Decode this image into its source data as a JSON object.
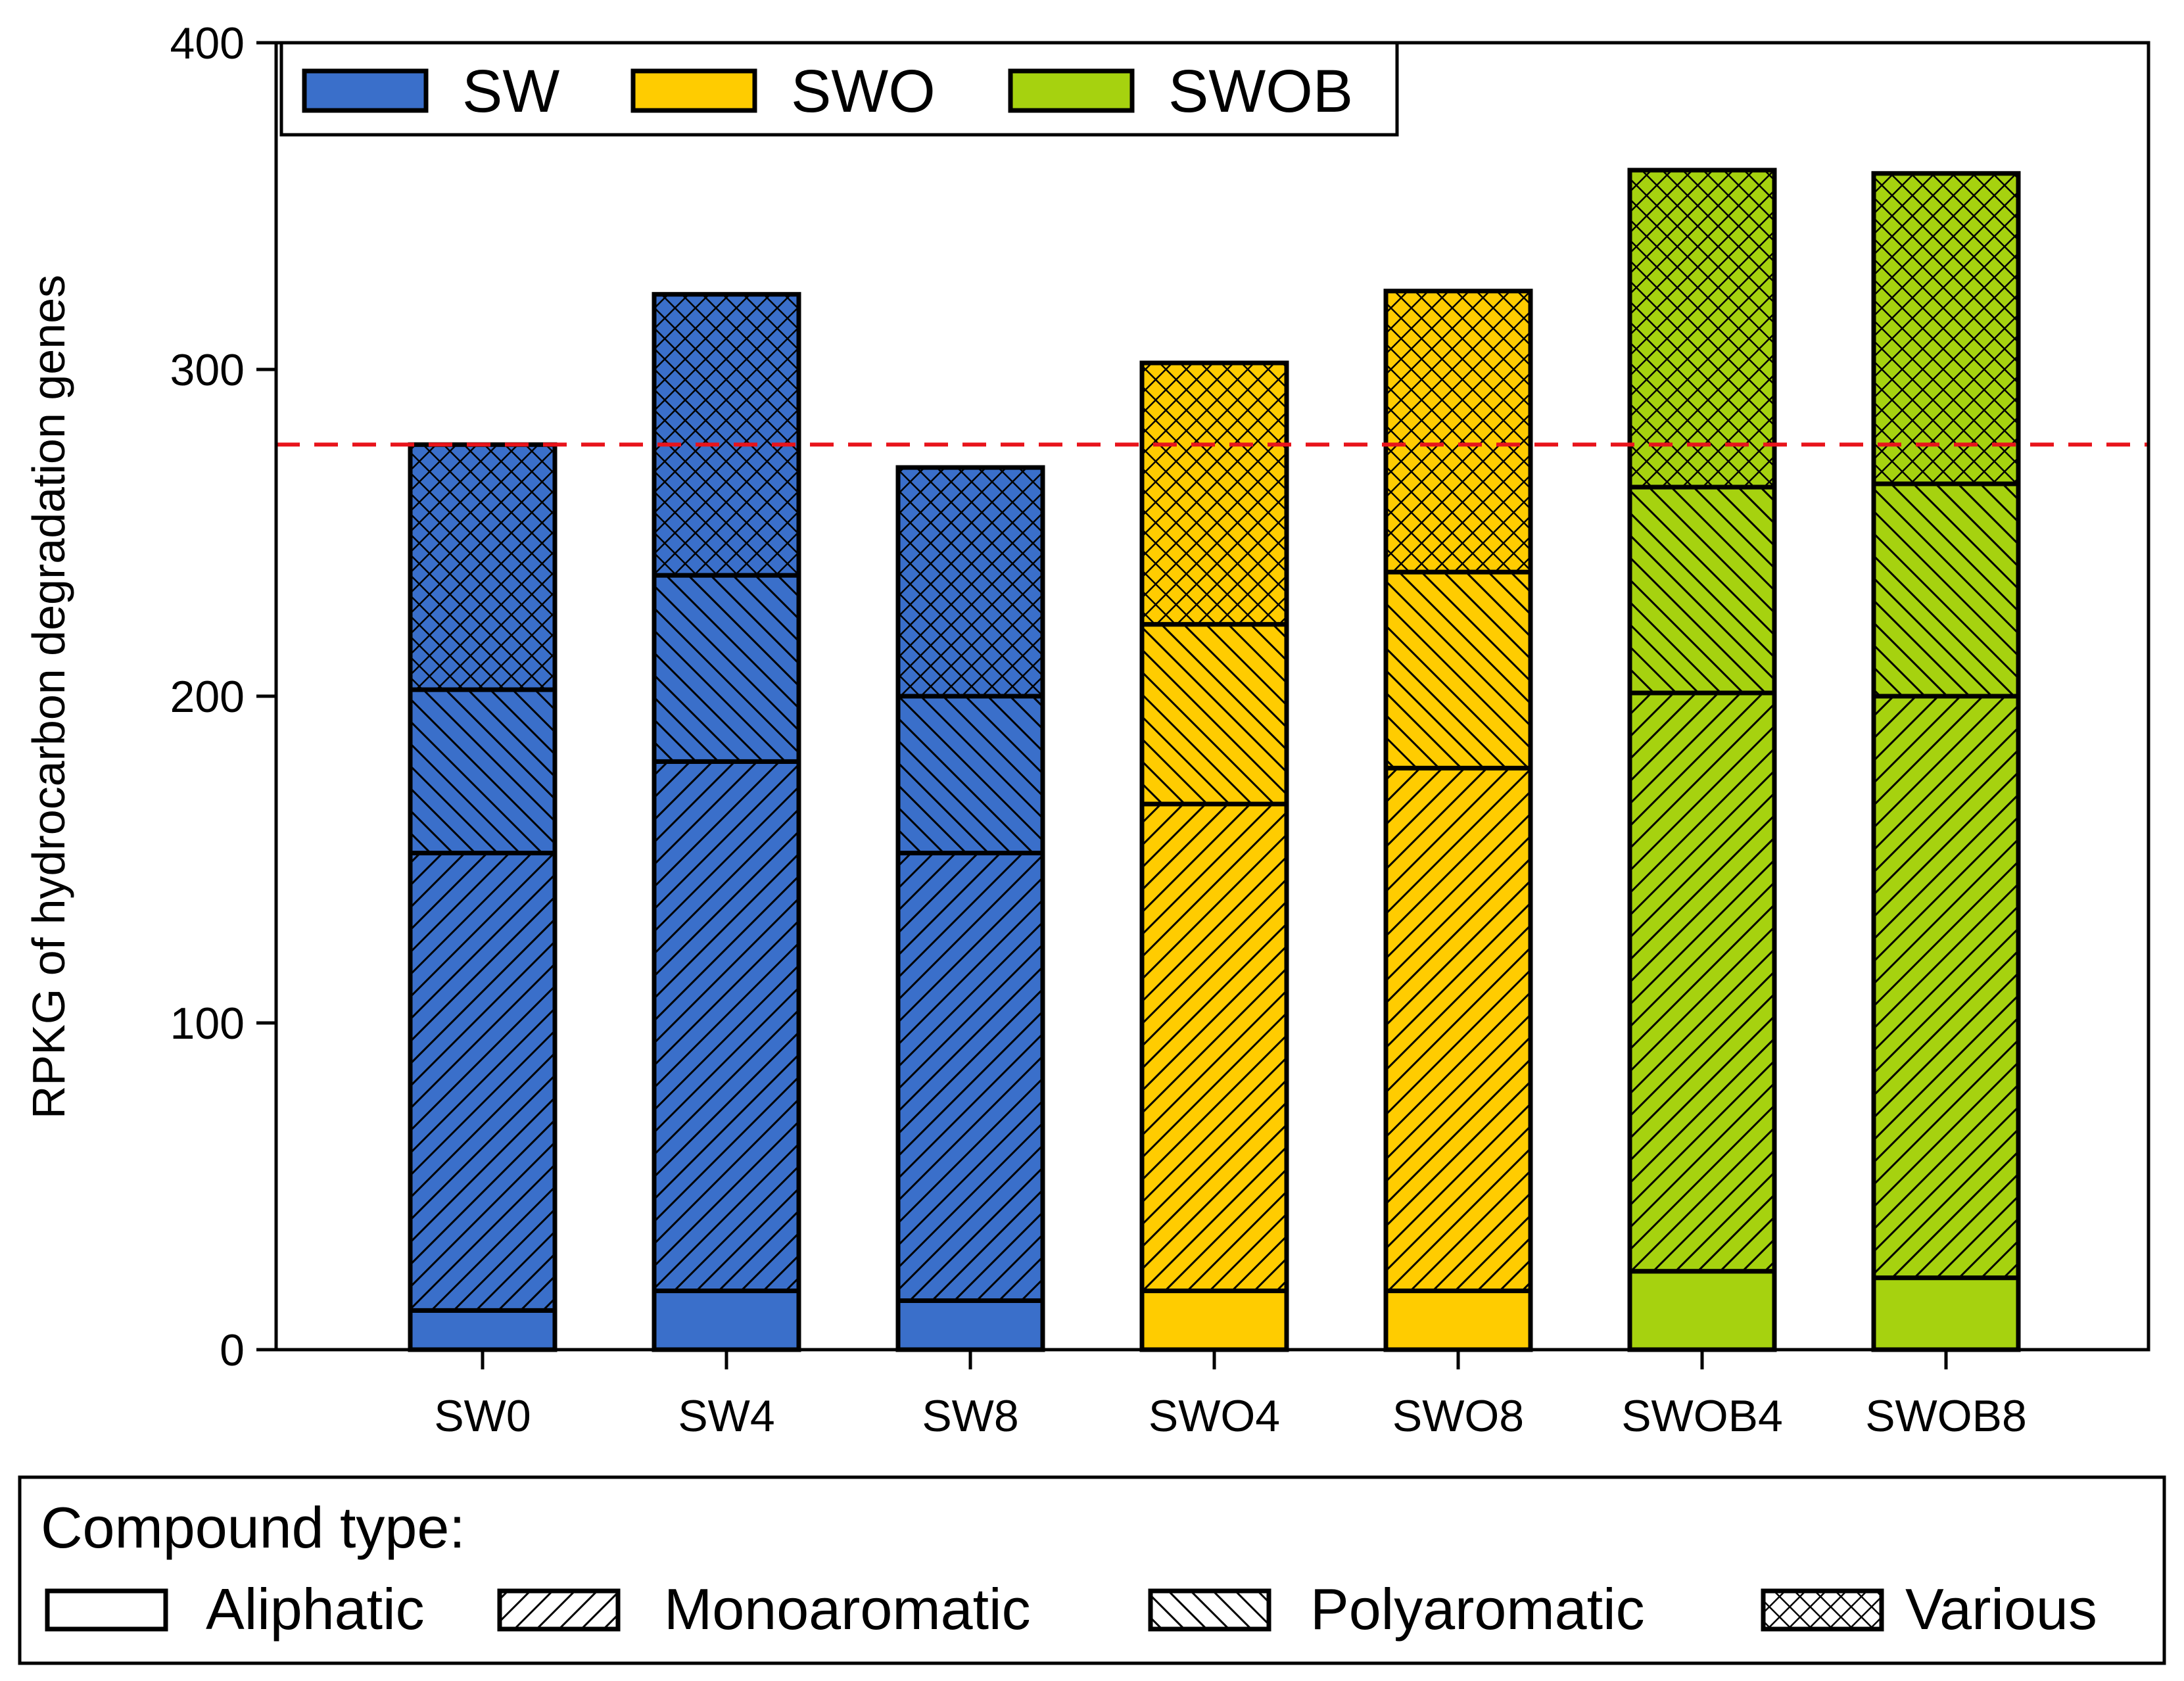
{
  "chart_data": {
    "type": "bar",
    "stacked": true,
    "title": "",
    "xlabel": "",
    "ylabel": "RPKG of hydrocarbon degradation genes",
    "ylim": [
      0,
      400
    ],
    "yticks": [
      0,
      100,
      200,
      300,
      400
    ],
    "grid": false,
    "categories": [
      "SW0",
      "SW4",
      "SW8",
      "SWO4",
      "SWO8",
      "SWOB4",
      "SWOB8"
    ],
    "category_groups": [
      "SW",
      "SW",
      "SW",
      "SWO",
      "SWO",
      "SWOB",
      "SWOB"
    ],
    "groups": [
      {
        "name": "SW",
        "color": "#3a6fca"
      },
      {
        "name": "SWO",
        "color": "#ffcc00"
      },
      {
        "name": "SWOB",
        "color": "#a6d20f"
      }
    ],
    "series": [
      {
        "name": "Aliphatic",
        "pattern": "none",
        "values": [
          12,
          18,
          15,
          18,
          18,
          24,
          22
        ]
      },
      {
        "name": "Monoaromatic",
        "pattern": "diagonal-up",
        "values": [
          140,
          162,
          137,
          149,
          160,
          177,
          178
        ]
      },
      {
        "name": "Polyaromatic",
        "pattern": "diagonal-down",
        "values": [
          50,
          57,
          48,
          55,
          60,
          63,
          65
        ]
      },
      {
        "name": "Various",
        "pattern": "crosshatch",
        "values": [
          75,
          86,
          70,
          80,
          86,
          97,
          95
        ]
      }
    ],
    "reference_line": {
      "value": 277,
      "color": "#e8141b",
      "style": "dashed"
    },
    "group_legend": {
      "position": "top-left",
      "items": [
        "SW",
        "SWO",
        "SWOB"
      ]
    },
    "compound_legend": {
      "title": "Compound type:",
      "position": "bottom",
      "items": [
        "Aliphatic",
        "Monoaromatic",
        "Polyaromatic",
        "Various"
      ]
    }
  }
}
